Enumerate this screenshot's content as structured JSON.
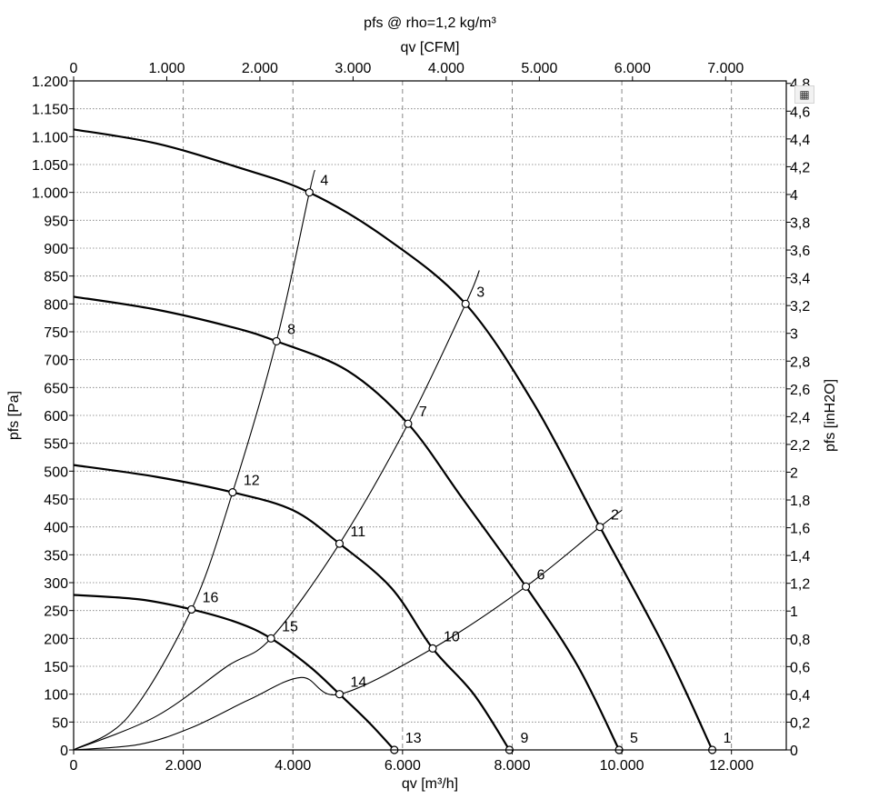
{
  "chart_data": {
    "type": "line",
    "title": "pfs @ rho=1,2 kg/m³",
    "xlabel": "qv [m³/h]",
    "x2label": "qv [CFM]",
    "ylabel": "pfs [Pa]",
    "y2label": "pfs [inH2O]",
    "xlim": [
      0,
      13000
    ],
    "ylim": [
      0,
      1200
    ],
    "x2lim": [
      0,
      7651
    ],
    "y2lim": [
      0,
      4.818
    ],
    "grid": true,
    "legend": "none",
    "x_ticks": [
      0,
      2000,
      4000,
      6000,
      8000,
      10000,
      12000
    ],
    "x_tick_labels": [
      "0",
      "2.000",
      "4.000",
      "6.000",
      "8.000",
      "10.000",
      "12.000"
    ],
    "x2_ticks": [
      0,
      1000,
      2000,
      3000,
      4000,
      5000,
      6000,
      7000
    ],
    "x2_tick_labels": [
      "0",
      "1.000",
      "2.000",
      "3.000",
      "4.000",
      "5.000",
      "6.000",
      "7.000"
    ],
    "y_ticks": [
      0,
      50,
      100,
      150,
      200,
      250,
      300,
      350,
      400,
      450,
      500,
      550,
      600,
      650,
      700,
      750,
      800,
      850,
      900,
      950,
      1000,
      1050,
      1100,
      1150,
      1200
    ],
    "y_tick_labels": [
      "0",
      "50",
      "100",
      "150",
      "200",
      "250",
      "300",
      "350",
      "400",
      "450",
      "500",
      "550",
      "600",
      "650",
      "700",
      "750",
      "800",
      "850",
      "900",
      "950",
      "1.000",
      "1.050",
      "1.100",
      "1.150",
      "1.200"
    ],
    "y2_ticks": [
      0,
      0.2,
      0.4,
      0.6,
      0.8,
      1,
      1.2,
      1.4,
      1.6,
      1.8,
      2,
      2.2,
      2.4,
      2.6,
      2.8,
      3,
      3.2,
      3.4,
      3.6,
      3.8,
      4,
      4.2,
      4.4,
      4.6,
      4.8
    ],
    "y2_tick_labels": [
      "0",
      "0,2",
      "0,4",
      "0,6",
      "0,8",
      "1",
      "1,2",
      "1,4",
      "1,6",
      "1,8",
      "2",
      "2,2",
      "2,4",
      "2,6",
      "2,8",
      "3",
      "3,2",
      "3,4",
      "3,6",
      "3,8",
      "4",
      "4,2",
      "4,4",
      "4,6",
      "4,8"
    ],
    "fan_curves": [
      {
        "points": [
          [
            0,
            1113
          ],
          [
            1500,
            1088
          ],
          [
            3000,
            1045
          ],
          [
            4300,
            1000
          ],
          [
            5700,
            918
          ],
          [
            7150,
            800
          ],
          [
            8400,
            620
          ],
          [
            9600,
            400
          ],
          [
            10800,
            180
          ],
          [
            11650,
            0
          ]
        ]
      },
      {
        "points": [
          [
            0,
            813
          ],
          [
            1500,
            790
          ],
          [
            2900,
            758
          ],
          [
            3700,
            733
          ],
          [
            5000,
            680
          ],
          [
            6100,
            585
          ],
          [
            7100,
            450
          ],
          [
            8250,
            293
          ],
          [
            9200,
            150
          ],
          [
            9950,
            0
          ]
        ]
      },
      {
        "points": [
          [
            0,
            511
          ],
          [
            1500,
            490
          ],
          [
            2900,
            462
          ],
          [
            4000,
            430
          ],
          [
            4850,
            370
          ],
          [
            5800,
            290
          ],
          [
            6550,
            182
          ],
          [
            7300,
            100
          ],
          [
            7950,
            0
          ]
        ]
      },
      {
        "points": [
          [
            0,
            278
          ],
          [
            1200,
            270
          ],
          [
            2150,
            252
          ],
          [
            3000,
            228
          ],
          [
            3600,
            200
          ],
          [
            4300,
            150
          ],
          [
            4850,
            100
          ],
          [
            5400,
            48
          ],
          [
            5850,
            0
          ]
        ]
      }
    ],
    "system_curves": [
      {
        "points": [
          [
            0,
            0
          ],
          [
            1200,
            10
          ],
          [
            2150,
            40
          ],
          [
            3200,
            90
          ],
          [
            4150,
            130
          ],
          [
            4850,
            100
          ],
          [
            6550,
            182
          ],
          [
            8250,
            293
          ],
          [
            9600,
            400
          ],
          [
            10000,
            430
          ]
        ]
      },
      {
        "points": [
          [
            0,
            0
          ],
          [
            1500,
            60
          ],
          [
            2800,
            150
          ],
          [
            3600,
            200
          ],
          [
            4850,
            370
          ],
          [
            6100,
            585
          ],
          [
            7150,
            800
          ],
          [
            7400,
            860
          ]
        ]
      },
      {
        "points": [
          [
            0,
            0
          ],
          [
            1000,
            60
          ],
          [
            2150,
            252
          ],
          [
            2900,
            462
          ],
          [
            3700,
            733
          ],
          [
            4300,
            1000
          ],
          [
            4400,
            1040
          ]
        ]
      }
    ],
    "operating_points": [
      {
        "label": "1",
        "x": 11650,
        "y": 0
      },
      {
        "label": "2",
        "x": 9600,
        "y": 400
      },
      {
        "label": "3",
        "x": 7150,
        "y": 800
      },
      {
        "label": "4",
        "x": 4300,
        "y": 1000
      },
      {
        "label": "5",
        "x": 9950,
        "y": 0
      },
      {
        "label": "6",
        "x": 8250,
        "y": 293
      },
      {
        "label": "7",
        "x": 6100,
        "y": 585
      },
      {
        "label": "8",
        "x": 3700,
        "y": 733
      },
      {
        "label": "9",
        "x": 7950,
        "y": 0
      },
      {
        "label": "10",
        "x": 6550,
        "y": 182
      },
      {
        "label": "11",
        "x": 4850,
        "y": 370
      },
      {
        "label": "12",
        "x": 2900,
        "y": 462
      },
      {
        "label": "13",
        "x": 5850,
        "y": 0
      },
      {
        "label": "14",
        "x": 4850,
        "y": 100
      },
      {
        "label": "15",
        "x": 3600,
        "y": 200
      },
      {
        "label": "16",
        "x": 2150,
        "y": 252
      }
    ]
  },
  "toolbar": {
    "table_icon": "table-icon"
  }
}
